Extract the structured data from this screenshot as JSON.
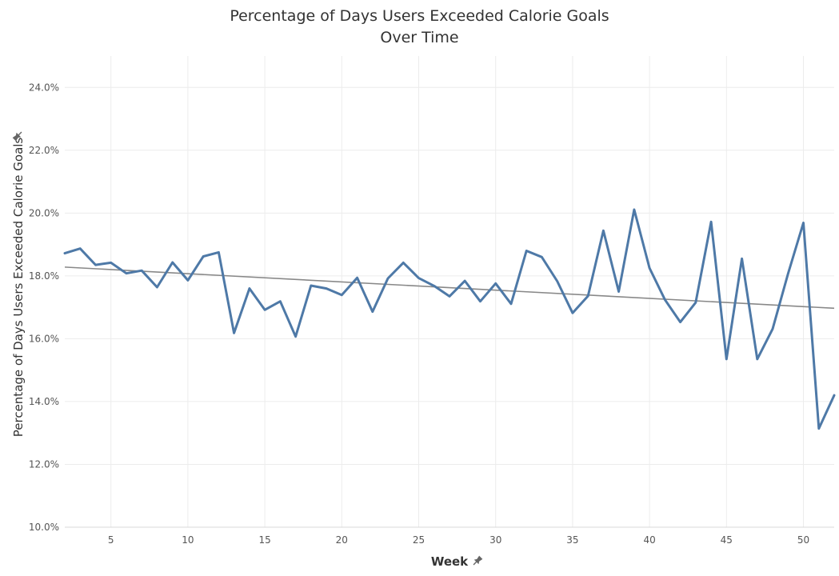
{
  "chart_data": {
    "type": "line",
    "title_line1": "Percentage of Days Users Exceeded Calorie Goals",
    "title_line2": "Over Time",
    "xlabel": "Week",
    "ylabel": "Percentage of Days Users Exceeded Calorie Goals",
    "xlim": [
      2,
      52
    ],
    "ylim": [
      10.0,
      25.0
    ],
    "x_ticks": [
      5,
      10,
      15,
      20,
      25,
      30,
      35,
      40,
      45,
      50
    ],
    "y_ticks": [
      10,
      12,
      14,
      16,
      18,
      20,
      22,
      24
    ],
    "y_tick_labels": [
      "10.0%",
      "12.0%",
      "14.0%",
      "16.0%",
      "18.0%",
      "20.0%",
      "22.0%",
      "24.0%"
    ],
    "grid": true,
    "colors": {
      "series": "#4e79a7",
      "trend": "#888888",
      "grid": "#ececec"
    },
    "series": [
      {
        "x": [
          2,
          3,
          4,
          5,
          6,
          7,
          8,
          9,
          10,
          11,
          12,
          13,
          14,
          15,
          16,
          17,
          18,
          19,
          20,
          21,
          22,
          23,
          24,
          25,
          26,
          27,
          28,
          29,
          30,
          31,
          32,
          33,
          34,
          35,
          36,
          37,
          38,
          39,
          40,
          41,
          42,
          43,
          44,
          45,
          46,
          47,
          48,
          49,
          50,
          51,
          52
        ],
        "values": [
          18.72,
          18.87,
          18.35,
          18.42,
          18.08,
          18.17,
          17.64,
          18.43,
          17.86,
          18.62,
          18.75,
          16.18,
          17.6,
          16.92,
          17.19,
          16.07,
          17.69,
          17.6,
          17.39,
          17.94,
          16.86,
          17.92,
          18.42,
          17.93,
          17.68,
          17.35,
          17.84,
          17.19,
          17.76,
          17.11,
          18.8,
          18.6,
          17.83,
          16.82,
          17.36,
          19.44,
          17.5,
          20.11,
          18.25,
          17.24,
          16.53,
          17.15,
          19.72,
          15.35,
          18.55,
          15.35,
          16.31,
          18.07,
          19.69,
          13.14,
          14.2
        ]
      }
    ],
    "trend_line": {
      "x": [
        2,
        52
      ],
      "y": [
        18.28,
        16.97
      ]
    }
  }
}
